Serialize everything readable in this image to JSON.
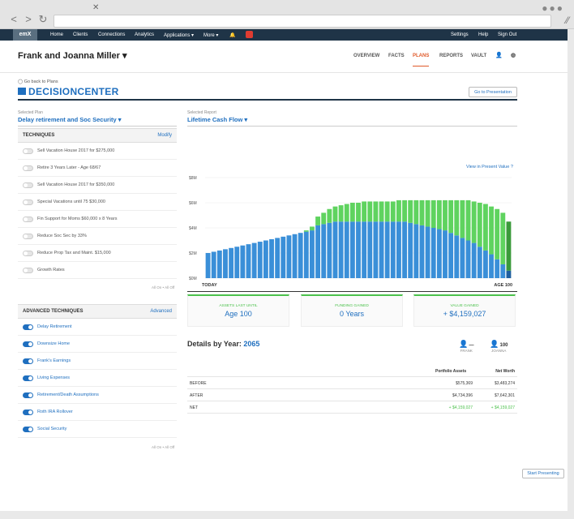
{
  "nav": {
    "logo": "emX",
    "items": [
      "Home",
      "Clients",
      "Connections",
      "Analytics",
      "Applications ▾",
      "More ▾"
    ],
    "right": [
      "Settings",
      "Help",
      "Sign Out"
    ]
  },
  "client": {
    "name": "Frank and Joanna Miller ▾"
  },
  "tabs": [
    "OVERVIEW",
    "FACTS",
    "PLANS",
    "REPORTS",
    "VAULT"
  ],
  "decision": {
    "back": "Go back to Plans",
    "title": "DECISIONCENTER",
    "goto": "Go to Presentation"
  },
  "plan": {
    "label": "Selected Plan",
    "value": "Delay retirement and Soc Security ▾"
  },
  "report": {
    "label": "Selected Report",
    "value": "Lifetime Cash Flow ▾"
  },
  "techniques": {
    "header": "TECHNIQUES",
    "modify": "Modify",
    "items": [
      "Sell Vacation House 2017 for $275,000",
      "Retire 3 Years Later - Age 68/67",
      "Sell Vacation House 2017 for $350,000",
      "Special Vacations until 75 $30,000",
      "Fin Support for Moms $60,000 x 8 Years",
      "Reduce Soc Sec by 33%",
      "Reduce Prop Tax and Maint. $15,000",
      "Growth Rates"
    ],
    "allonoff": "All On • All Off"
  },
  "advanced": {
    "header": "ADVANCED TECHNIQUES",
    "action": "Advanced",
    "items": [
      "Delay Retirement",
      "Downsize Home",
      "Frank's Earnings",
      "Living Expenses",
      "Retirement/Death Assumptions",
      "Roth IRA Rollover",
      "Social Security"
    ],
    "allonoff": "All On • All Off"
  },
  "present_value": "View in Present Value ?",
  "chart_data": {
    "type": "bar",
    "title": "Lifetime Cash Flow",
    "yticks": [
      "$8M",
      "$6M",
      "$4M",
      "$2M",
      "$0M"
    ],
    "ylim": [
      0,
      8
    ],
    "xlabel_left": "TODAY",
    "xlabel_right": "AGE 100",
    "series": [
      {
        "name": "Assets",
        "color": "#3a8fd8",
        "values": [
          2.0,
          2.1,
          2.2,
          2.3,
          2.4,
          2.5,
          2.6,
          2.7,
          2.8,
          2.9,
          3.0,
          3.1,
          3.2,
          3.3,
          3.4,
          3.5,
          3.6,
          3.7,
          3.8,
          4.2,
          4.3,
          4.4,
          4.5,
          4.5,
          4.5,
          4.5,
          4.5,
          4.5,
          4.5,
          4.5,
          4.5,
          4.5,
          4.5,
          4.5,
          4.5,
          4.4,
          4.3,
          4.2,
          4.1,
          4.0,
          3.9,
          3.8,
          3.6,
          3.4,
          3.2,
          3.0,
          2.8,
          2.5,
          2.2,
          1.9,
          1.5,
          1.1,
          0.6
        ]
      },
      {
        "name": "Gained",
        "color": "#5fd35f",
        "values": [
          0,
          0,
          0,
          0,
          0,
          0,
          0,
          0,
          0,
          0,
          0,
          0,
          0,
          0,
          0,
          0,
          0,
          0.1,
          0.3,
          0.7,
          0.9,
          1.1,
          1.2,
          1.3,
          1.4,
          1.5,
          1.5,
          1.6,
          1.6,
          1.6,
          1.6,
          1.6,
          1.6,
          1.7,
          1.7,
          1.8,
          1.9,
          2.0,
          2.1,
          2.2,
          2.3,
          2.4,
          2.6,
          2.8,
          3.0,
          3.2,
          3.3,
          3.5,
          3.7,
          3.8,
          4.0,
          4.1,
          3.9
        ]
      }
    ]
  },
  "stats": [
    {
      "title": "ASSETS LAST UNTIL",
      "value": "Age 100"
    },
    {
      "title": "FUNDING GAINED",
      "value": "0 Years"
    },
    {
      "title": "VALUE GAINED",
      "value": "+ $4,159,027"
    }
  ],
  "details": {
    "label": "Details by Year:",
    "year": "2065"
  },
  "persons": [
    {
      "age": "—",
      "name": "FRANK"
    },
    {
      "age": "100",
      "name": "JOANNA"
    }
  ],
  "table": {
    "headers": [
      "Portfolio Assets",
      "Net Worth"
    ],
    "rows": [
      {
        "label": "BEFORE",
        "portfolio": "$575,369",
        "net": "$3,483,274"
      },
      {
        "label": "AFTER",
        "portfolio": "$4,734,396",
        "net": "$7,642,301"
      },
      {
        "label": "NET",
        "portfolio": "+ $4,159,027",
        "net": "+ $4,159,027"
      }
    ]
  },
  "start_presenting": "Start Presenting"
}
